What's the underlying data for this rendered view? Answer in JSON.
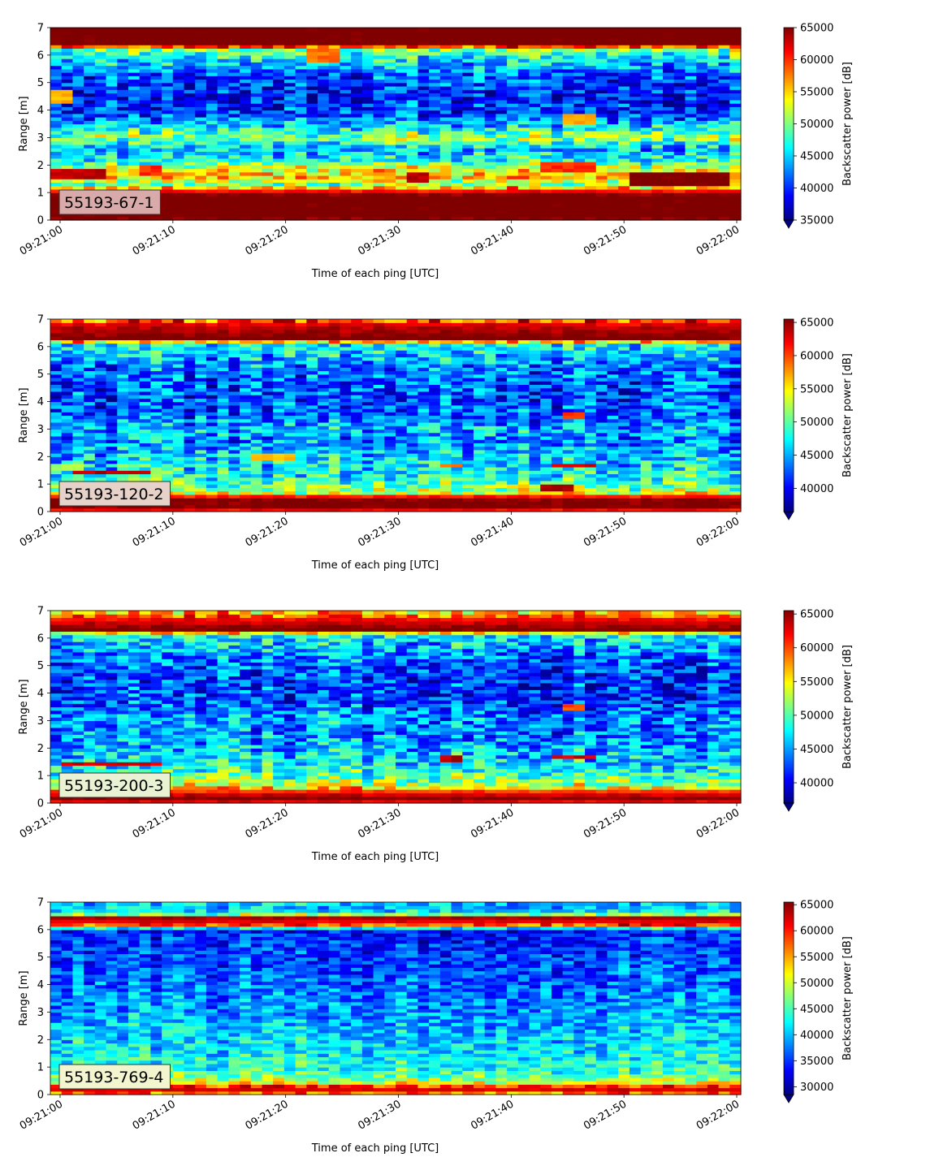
{
  "chart_data": [
    {
      "type": "heatmap",
      "id": "55193-67-1",
      "label": "55193-67-1",
      "label_box_color": "#d9aaaa",
      "xlabel": "Time of each ping [UTC]",
      "ylabel": "Range [m]",
      "x_range": [
        "09:21:00",
        "09:22:00"
      ],
      "x_ticks": [
        "09:21:00",
        "09:21:10",
        "09:21:20",
        "09:21:30",
        "09:21:40",
        "09:21:50",
        "09:22:00"
      ],
      "ylim": [
        0,
        7
      ],
      "y_ticks": [
        0,
        1,
        2,
        3,
        4,
        5,
        6,
        7
      ],
      "colorbar": {
        "label": "Backscatter power [dB]",
        "vmin": 35000,
        "vmax": 65000,
        "ticks": [
          35000,
          40000,
          45000,
          50000,
          55000,
          60000,
          65000
        ],
        "extend": "min",
        "colormap": "jet"
      },
      "profile_levels": [
        [
          0.0,
          64000
        ],
        [
          0.15,
          66000
        ],
        [
          0.5,
          66000
        ],
        [
          0.9,
          66000
        ],
        [
          1.1,
          60000
        ],
        [
          1.3,
          50000
        ],
        [
          1.6,
          56000
        ],
        [
          1.8,
          54000
        ],
        [
          2.2,
          47000
        ],
        [
          2.6,
          44000
        ],
        [
          3.0,
          51000
        ],
        [
          3.3,
          47000
        ],
        [
          3.8,
          41000
        ],
        [
          4.5,
          39000
        ],
        [
          5.2,
          41000
        ],
        [
          5.8,
          45000
        ],
        [
          6.2,
          50000
        ],
        [
          6.4,
          66000
        ],
        [
          7.0,
          66000
        ]
      ],
      "features": [
        {
          "t0": 0,
          "t1": 4,
          "r0": 1.5,
          "r1": 1.9,
          "value": 63000
        },
        {
          "t0": 0,
          "t1": 1,
          "r0": 4.3,
          "r1": 4.7,
          "value": 56000
        },
        {
          "t0": 8,
          "t1": 9,
          "r0": 1.6,
          "r1": 2.0,
          "value": 60000
        },
        {
          "t0": 23,
          "t1": 25,
          "r0": 5.8,
          "r1": 6.3,
          "value": 58000
        },
        {
          "t0": 32,
          "t1": 33,
          "r0": 1.4,
          "r1": 1.8,
          "value": 63000
        },
        {
          "t0": 44,
          "t1": 48,
          "r0": 1.7,
          "r1": 2.1,
          "value": 60000
        },
        {
          "t0": 46,
          "t1": 48,
          "r0": 3.5,
          "r1": 3.9,
          "value": 56000
        },
        {
          "t0": 52,
          "t1": 60,
          "r0": 1.3,
          "r1": 1.8,
          "value": 65500
        }
      ],
      "seed": 11
    },
    {
      "type": "heatmap",
      "id": "55193-120-2",
      "label": "55193-120-2",
      "label_box_color": "#e6d2c8",
      "xlabel": "Time of each ping [UTC]",
      "ylabel": "Range [m]",
      "x_range": [
        "09:21:00",
        "09:22:00"
      ],
      "x_ticks": [
        "09:21:00",
        "09:21:10",
        "09:21:20",
        "09:21:30",
        "09:21:40",
        "09:21:50",
        "09:22:00"
      ],
      "ylim": [
        0,
        7
      ],
      "y_ticks": [
        0,
        1,
        2,
        3,
        4,
        5,
        6,
        7
      ],
      "colorbar": {
        "label": "Backscatter power [dB]",
        "vmin": 36500,
        "vmax": 65500,
        "ticks": [
          40000,
          45000,
          50000,
          55000,
          60000,
          65000
        ],
        "extend": "min",
        "colormap": "jet"
      },
      "profile_levels": [
        [
          0.0,
          60000
        ],
        [
          0.2,
          66000
        ],
        [
          0.5,
          65000
        ],
        [
          0.7,
          53000
        ],
        [
          1.0,
          50000
        ],
        [
          1.5,
          47000
        ],
        [
          2.0,
          46000
        ],
        [
          2.6,
          44000
        ],
        [
          3.0,
          45000
        ],
        [
          3.5,
          43000
        ],
        [
          4.2,
          42000
        ],
        [
          5.0,
          43000
        ],
        [
          5.6,
          45000
        ],
        [
          6.1,
          48000
        ],
        [
          6.3,
          66000
        ],
        [
          6.8,
          63000
        ],
        [
          7.0,
          58000
        ]
      ],
      "features": [
        {
          "t0": 0,
          "t1": 2,
          "r0": 1.5,
          "r1": 1.8,
          "value": 52000
        },
        {
          "t0": 2,
          "t1": 8,
          "r0": 1.35,
          "r1": 1.55,
          "value": 64000
        },
        {
          "t0": 18,
          "t1": 21,
          "r0": 1.9,
          "r1": 2.1,
          "value": 56000
        },
        {
          "t0": 35,
          "t1": 36,
          "r0": 1.6,
          "r1": 1.8,
          "value": 58000
        },
        {
          "t0": 44,
          "t1": 46,
          "r0": 0.7,
          "r1": 0.95,
          "value": 64000
        },
        {
          "t0": 45,
          "t1": 48,
          "r0": 1.6,
          "r1": 1.8,
          "value": 63000
        },
        {
          "t0": 46,
          "t1": 47,
          "r0": 3.4,
          "r1": 3.6,
          "value": 60000
        }
      ],
      "seed": 22
    },
    {
      "type": "heatmap",
      "id": "55193-200-3",
      "label": "55193-200-3",
      "label_box_color": "#e9f2d2",
      "xlabel": "Time of each ping [UTC]",
      "ylabel": "Range [m]",
      "x_range": [
        "09:21:00",
        "09:22:00"
      ],
      "x_ticks": [
        "09:21:00",
        "09:21:10",
        "09:21:20",
        "09:21:30",
        "09:21:40",
        "09:21:50",
        "09:22:00"
      ],
      "ylim": [
        0,
        7
      ],
      "y_ticks": [
        0,
        1,
        2,
        3,
        4,
        5,
        6,
        7
      ],
      "colorbar": {
        "label": "Backscatter power [dB]",
        "vmin": 37000,
        "vmax": 65500,
        "ticks": [
          40000,
          45000,
          50000,
          55000,
          60000,
          65000
        ],
        "extend": "min",
        "colormap": "jet"
      },
      "profile_levels": [
        [
          0.0,
          60000
        ],
        [
          0.15,
          66000
        ],
        [
          0.4,
          62000
        ],
        [
          0.6,
          54000
        ],
        [
          1.0,
          50000
        ],
        [
          1.5,
          47000
        ],
        [
          2.0,
          46000
        ],
        [
          2.6,
          44000
        ],
        [
          3.0,
          45000
        ],
        [
          3.6,
          43000
        ],
        [
          4.3,
          42000
        ],
        [
          5.0,
          43000
        ],
        [
          5.6,
          45000
        ],
        [
          6.1,
          48000
        ],
        [
          6.3,
          66000
        ],
        [
          6.7,
          62000
        ],
        [
          7.0,
          55000
        ]
      ],
      "features": [
        {
          "t0": 1,
          "t1": 9,
          "r0": 1.35,
          "r1": 1.55,
          "value": 63000
        },
        {
          "t0": 35,
          "t1": 36,
          "r0": 1.55,
          "r1": 1.75,
          "value": 64000
        },
        {
          "t0": 45,
          "t1": 48,
          "r0": 1.6,
          "r1": 1.8,
          "value": 63000
        },
        {
          "t0": 46,
          "t1": 47,
          "r0": 3.4,
          "r1": 3.6,
          "value": 60000
        }
      ],
      "seed": 33
    },
    {
      "type": "heatmap",
      "id": "55193-769-4",
      "label": "55193-769-4",
      "label_box_color": "#f2f5cd",
      "xlabel": "Time of each ping [UTC]",
      "ylabel": "Range [m]",
      "x_range": [
        "09:21:00",
        "09:22:00"
      ],
      "x_ticks": [
        "09:21:00",
        "09:21:10",
        "09:21:20",
        "09:21:30",
        "09:21:40",
        "09:21:50",
        "09:22:00"
      ],
      "ylim": [
        0,
        7
      ],
      "y_ticks": [
        0,
        1,
        2,
        3,
        4,
        5,
        6,
        7
      ],
      "colorbar": {
        "label": "Backscatter power [dB]",
        "vmin": 28500,
        "vmax": 65500,
        "ticks": [
          30000,
          35000,
          40000,
          45000,
          50000,
          55000,
          60000,
          65000
        ],
        "extend": "min",
        "colormap": "jet"
      },
      "profile_levels": [
        [
          0.0,
          52000
        ],
        [
          0.15,
          63000
        ],
        [
          0.3,
          60000
        ],
        [
          0.45,
          50000
        ],
        [
          0.8,
          45000
        ],
        [
          1.5,
          42000
        ],
        [
          2.5,
          40000
        ],
        [
          3.5,
          38000
        ],
        [
          4.5,
          36000
        ],
        [
          5.5,
          35000
        ],
        [
          6.0,
          34000
        ],
        [
          6.2,
          60000
        ],
        [
          6.45,
          64000
        ],
        [
          6.6,
          42000
        ],
        [
          7.0,
          40000
        ]
      ],
      "features": [],
      "seed": 44
    }
  ]
}
